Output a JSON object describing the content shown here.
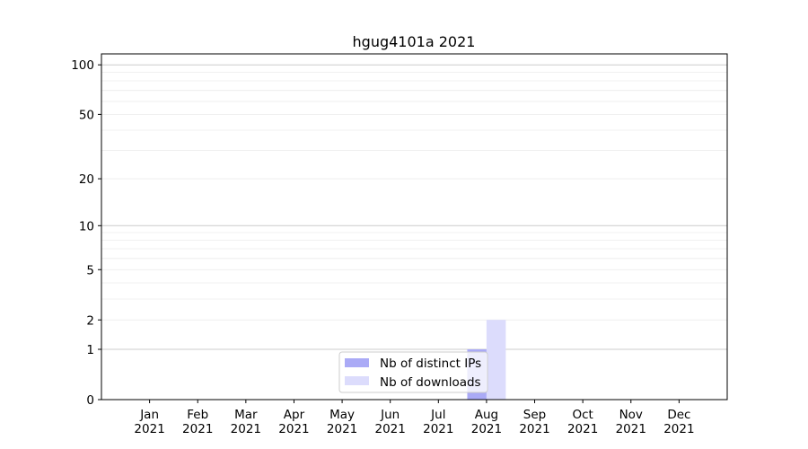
{
  "chart_data": {
    "type": "bar",
    "title": "hgug4101a 2021",
    "xlabel": "",
    "ylabel": "",
    "categories": [
      "Jan\n2021",
      "Feb\n2021",
      "Mar\n2021",
      "Apr\n2021",
      "May\n2021",
      "Jun\n2021",
      "Jul\n2021",
      "Aug\n2021",
      "Sep\n2021",
      "Oct\n2021",
      "Nov\n2021",
      "Dec\n2021"
    ],
    "x_tick_labels": [
      [
        "Jan",
        "2021"
      ],
      [
        "Feb",
        "2021"
      ],
      [
        "Mar",
        "2021"
      ],
      [
        "Apr",
        "2021"
      ],
      [
        "May",
        "2021"
      ],
      [
        "Jun",
        "2021"
      ],
      [
        "Jul",
        "2021"
      ],
      [
        "Aug",
        "2021"
      ],
      [
        "Sep",
        "2021"
      ],
      [
        "Oct",
        "2021"
      ],
      [
        "Nov",
        "2021"
      ],
      [
        "Dec",
        "2021"
      ]
    ],
    "y_scale": "log(1+y)",
    "ylim": [
      0,
      117
    ],
    "y_ticks": [
      0,
      1,
      2,
      5,
      10,
      20,
      50,
      100
    ],
    "grid": true,
    "legend_position": "lower-center",
    "series": [
      {
        "name": "Nb of distinct IPs",
        "color": "#aaaaf6",
        "values": [
          0,
          0,
          0,
          0,
          0,
          0,
          0,
          1,
          0,
          0,
          0,
          0
        ]
      },
      {
        "name": "Nb of downloads",
        "color": "#dcdcfc",
        "values": [
          0,
          0,
          0,
          0,
          0,
          0,
          0,
          2,
          0,
          0,
          0,
          0
        ]
      }
    ]
  }
}
